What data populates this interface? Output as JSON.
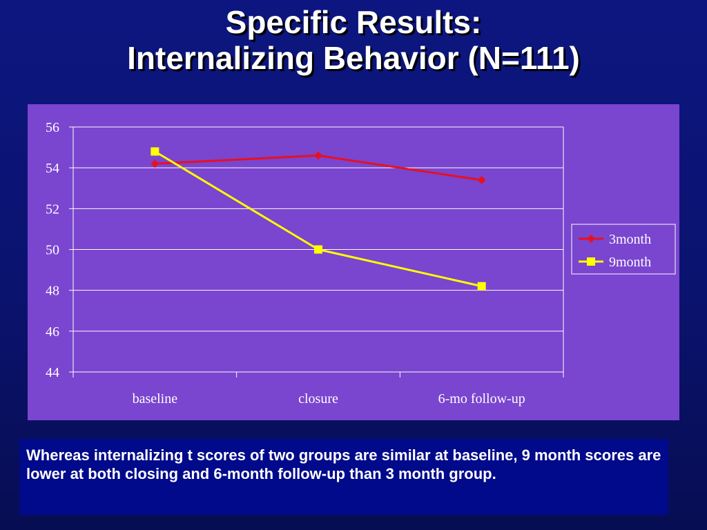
{
  "slide": {
    "title_line1": "Specific Results:",
    "title_line2": "Internalizing Behavior (N=111)",
    "caption": "Whereas internalizing t scores of two groups are similar at baseline, 9 month scores are lower at both closing and 6-month follow-up than 3 month group."
  },
  "colors": {
    "background": "#0a136e",
    "plot_area": "#7a45cf",
    "caption_box": "#000a8a",
    "series_3month": "#e8101e",
    "series_9month": "#ffff00"
  },
  "chart_data": {
    "type": "line",
    "title": "",
    "xlabel": "",
    "ylabel": "",
    "categories": [
      "baseline",
      "closure",
      "6-mo follow-up"
    ],
    "ylim": [
      44,
      56
    ],
    "yticks": [
      44,
      46,
      48,
      50,
      52,
      54,
      56
    ],
    "grid": "horizontal",
    "legend_position": "right",
    "series": [
      {
        "name": "3month",
        "marker": "diamond",
        "color": "#e8101e",
        "values": [
          54.2,
          54.6,
          53.4
        ]
      },
      {
        "name": "9month",
        "marker": "square",
        "color": "#ffff00",
        "values": [
          54.8,
          50.0,
          48.2
        ]
      }
    ]
  }
}
